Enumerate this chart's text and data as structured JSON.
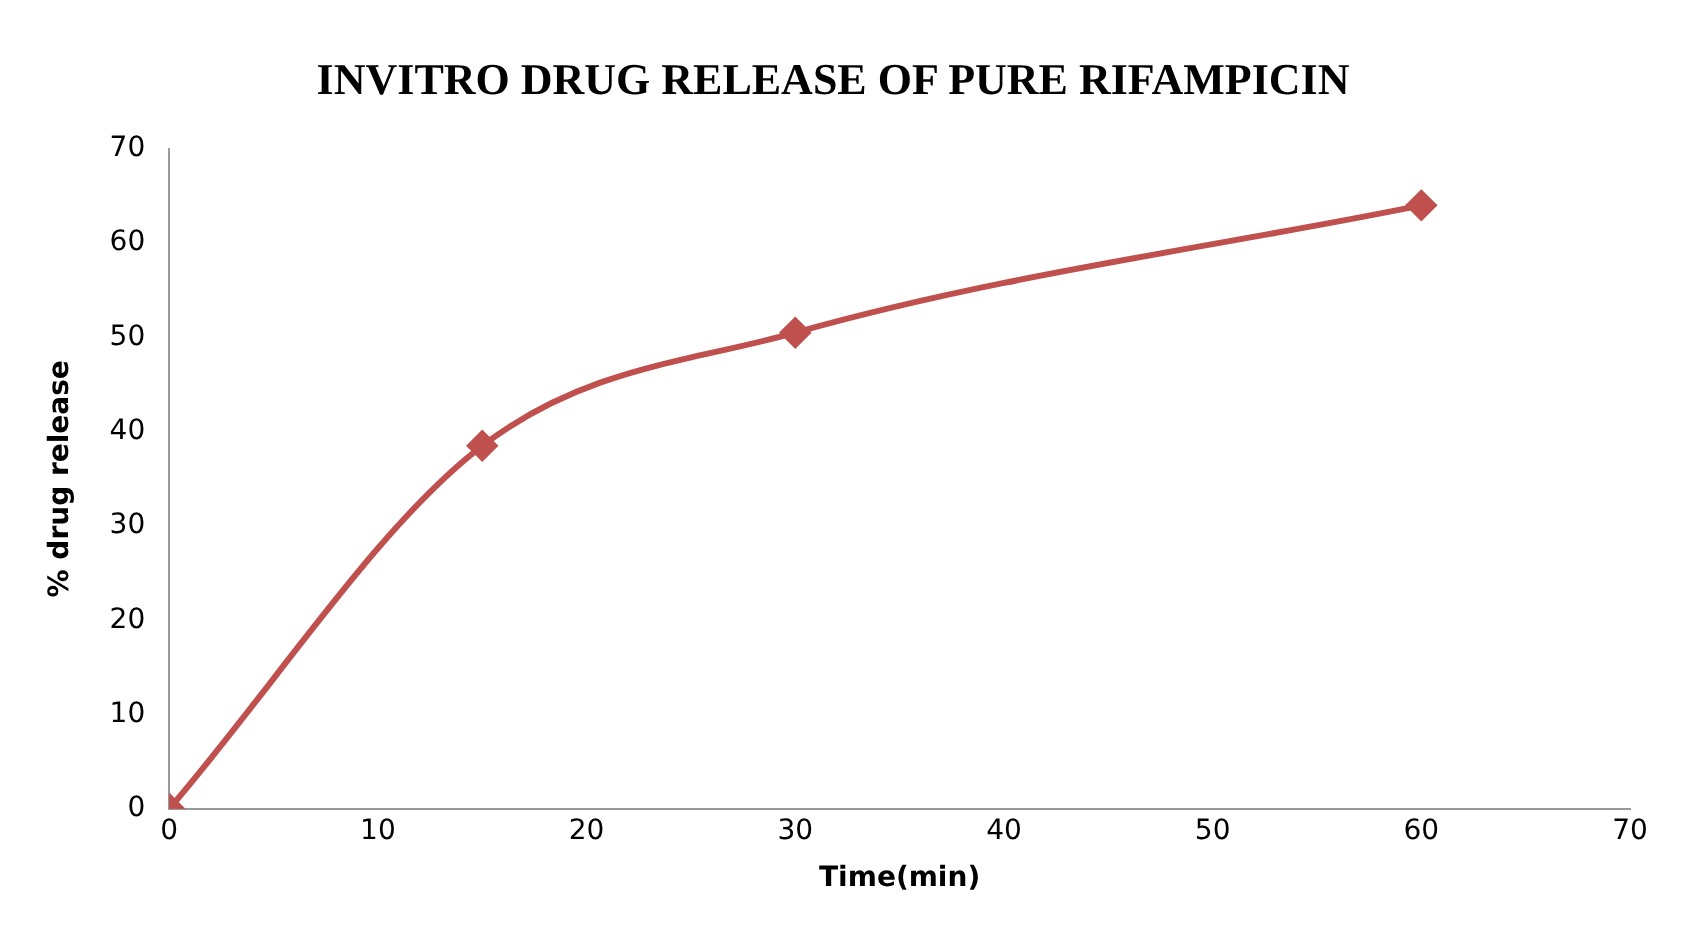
{
  "chart_data": {
    "type": "line",
    "title": "INVITRO DRUG RELEASE OF PURE RIFAMPICIN",
    "xlabel": "Time(min)",
    "ylabel": "% drug release",
    "x": [
      0,
      15,
      30,
      60
    ],
    "series": [
      {
        "color": "#c0504d",
        "values": [
          0,
          38.5,
          50.5,
          64
        ]
      }
    ],
    "xlim": [
      0,
      70
    ],
    "xticks": [
      0,
      10,
      20,
      30,
      40,
      50,
      60,
      70
    ],
    "ylim": [
      0,
      70
    ],
    "yticks": [
      0,
      10,
      20,
      30,
      40,
      50,
      60,
      70
    ],
    "grid": false,
    "legend": false,
    "marker": "diamond",
    "line_style": "solid"
  }
}
